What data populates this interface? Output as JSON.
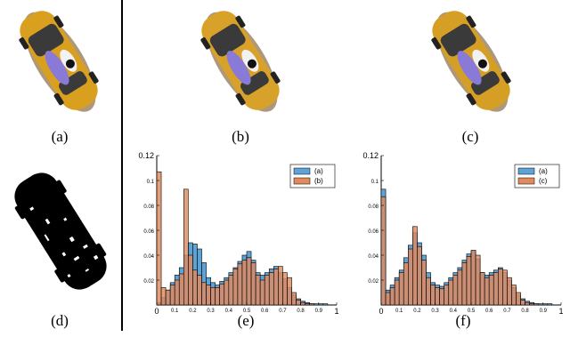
{
  "captions": {
    "a": "(a)",
    "b": "(b)",
    "c": "(c)",
    "d": "(d)",
    "e": "(e)",
    "f": "(f)"
  },
  "colors": {
    "car_body": "#d9a020",
    "car_shadow": "#8a5a10",
    "blue_bar": "#5ea3d6",
    "orange_bar": "#e08a5e",
    "overlap": "#9c6a52",
    "mask_black": "#000000"
  },
  "chart_data": [
    {
      "type": "bar",
      "panel": "e",
      "xlim": [
        0,
        1
      ],
      "ylim": [
        0,
        0.12
      ],
      "x_ticks": [
        "0",
        "0.1",
        "0.2",
        "0.3",
        "0.4",
        "0.5",
        "0.6",
        "0.7",
        "0.8",
        "0.9",
        "1"
      ],
      "y_ticks": [
        "0.12",
        "0.1",
        "0.08",
        "0.06",
        "0.04",
        "0.02"
      ],
      "legend_position": "top-right",
      "bin_width": 0.025,
      "series": [
        {
          "name": "(a)",
          "color": "#5ea3d6",
          "values": [
            0.002,
            0.006,
            0.012,
            0.018,
            0.024,
            0.03,
            0.04,
            0.05,
            0.049,
            0.045,
            0.034,
            0.022,
            0.018,
            0.016,
            0.019,
            0.022,
            0.026,
            0.03,
            0.035,
            0.04,
            0.043,
            0.036,
            0.026,
            0.024,
            0.026,
            0.029,
            0.031,
            0.026,
            0.021,
            0.014,
            0.008,
            0.005,
            0.003,
            0.002,
            0.001,
            0.001,
            0.001,
            0.001,
            0.0,
            0.0
          ]
        },
        {
          "name": "(b)",
          "color": "#e08a5e",
          "values": [
            0.107,
            0.014,
            0.012,
            0.016,
            0.02,
            0.025,
            0.093,
            0.04,
            0.028,
            0.024,
            0.018,
            0.016,
            0.014,
            0.014,
            0.017,
            0.02,
            0.024,
            0.029,
            0.033,
            0.036,
            0.038,
            0.034,
            0.024,
            0.02,
            0.024,
            0.026,
            0.029,
            0.031,
            0.026,
            0.022,
            0.01,
            0.004,
            0.002,
            0.001,
            0.001,
            0.0,
            0.0,
            0.0,
            0.0,
            0.0
          ]
        }
      ]
    },
    {
      "type": "bar",
      "panel": "f",
      "xlim": [
        0,
        1
      ],
      "ylim": [
        0,
        0.12
      ],
      "x_ticks": [
        "0",
        "0.1",
        "0.2",
        "0.3",
        "0.4",
        "0.5",
        "0.6",
        "0.7",
        "0.8",
        "0.9",
        "1"
      ],
      "y_ticks": [
        "0.12",
        "0.1",
        "0.08",
        "0.06",
        "0.04",
        "0.02"
      ],
      "legend_position": "top-right",
      "bin_width": 0.025,
      "series": [
        {
          "name": "(a)",
          "color": "#5ea3d6",
          "values": [
            0.093,
            0.012,
            0.016,
            0.022,
            0.028,
            0.038,
            0.048,
            0.058,
            0.05,
            0.04,
            0.026,
            0.018,
            0.016,
            0.015,
            0.018,
            0.022,
            0.026,
            0.03,
            0.036,
            0.041,
            0.043,
            0.037,
            0.026,
            0.024,
            0.026,
            0.028,
            0.03,
            0.026,
            0.02,
            0.014,
            0.008,
            0.005,
            0.003,
            0.002,
            0.001,
            0.001,
            0.001,
            0.001,
            0.0,
            0.0
          ]
        },
        {
          "name": "(c)",
          "color": "#e08a5e",
          "values": [
            0.087,
            0.01,
            0.014,
            0.02,
            0.026,
            0.034,
            0.045,
            0.063,
            0.047,
            0.036,
            0.022,
            0.016,
            0.014,
            0.013,
            0.016,
            0.02,
            0.024,
            0.028,
            0.034,
            0.039,
            0.044,
            0.04,
            0.026,
            0.022,
            0.024,
            0.026,
            0.029,
            0.028,
            0.022,
            0.016,
            0.01,
            0.004,
            0.002,
            0.001,
            0.001,
            0.0,
            0.0,
            0.0,
            0.0,
            0.0
          ]
        }
      ]
    }
  ]
}
